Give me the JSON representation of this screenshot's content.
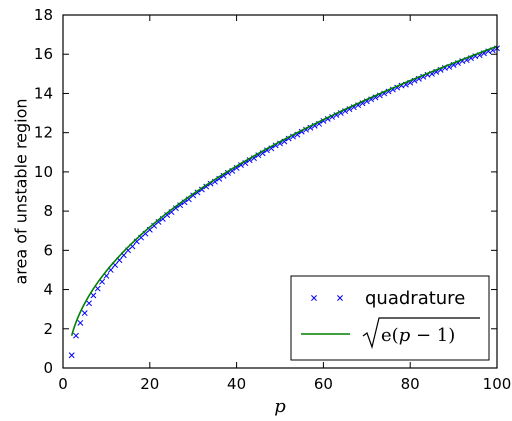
{
  "chart_data": {
    "type": "line",
    "title": "",
    "xlabel": "p",
    "ylabel": "area of unstable region",
    "xlim": [
      0,
      100
    ],
    "ylim": [
      0,
      18
    ],
    "xticks": [
      0,
      20,
      40,
      60,
      80,
      100
    ],
    "yticks": [
      0,
      2,
      4,
      6,
      8,
      10,
      12,
      14,
      16,
      18
    ],
    "grid": false,
    "legend_position": "lower-right",
    "series": [
      {
        "name": "quadrature",
        "kind": "markers",
        "marker": "x",
        "color": "#0000ff",
        "x": [
          2,
          3,
          4,
          5,
          6,
          7,
          8,
          9,
          10,
          11,
          12,
          13,
          14,
          15,
          16,
          17,
          18,
          19,
          20,
          21,
          22,
          23,
          24,
          25,
          26,
          27,
          28,
          29,
          30,
          31,
          32,
          33,
          34,
          35,
          36,
          37,
          38,
          39,
          40,
          41,
          42,
          43,
          44,
          45,
          46,
          47,
          48,
          49,
          50,
          51,
          52,
          53,
          54,
          55,
          56,
          57,
          58,
          59,
          60,
          61,
          62,
          63,
          64,
          65,
          66,
          67,
          68,
          69,
          70,
          71,
          72,
          73,
          74,
          75,
          76,
          77,
          78,
          79,
          80,
          81,
          82,
          83,
          84,
          85,
          86,
          87,
          88,
          89,
          90,
          91,
          92,
          93,
          94,
          95,
          96,
          97,
          98,
          99,
          100
        ],
        "y": [
          0.65,
          1.65,
          2.3,
          2.8,
          3.3,
          3.7,
          4.05,
          4.4,
          4.7,
          5.0,
          5.25,
          5.5,
          5.75,
          6.0,
          6.2,
          6.45,
          6.65,
          6.85,
          7.05,
          7.25,
          7.45,
          7.6,
          7.8,
          7.95,
          8.15,
          8.3,
          8.45,
          8.6,
          8.8,
          8.95,
          9.1,
          9.25,
          9.4,
          9.5,
          9.65,
          9.8,
          9.95,
          10.05,
          10.2,
          10.35,
          10.45,
          10.6,
          10.7,
          10.85,
          10.95,
          11.1,
          11.2,
          11.35,
          11.45,
          11.55,
          11.7,
          11.8,
          11.9,
          12.05,
          12.15,
          12.25,
          12.35,
          12.45,
          12.6,
          12.7,
          12.8,
          12.9,
          13.0,
          13.1,
          13.2,
          13.3,
          13.4,
          13.5,
          13.6,
          13.7,
          13.8,
          13.9,
          14.0,
          14.1,
          14.2,
          14.3,
          14.4,
          14.45,
          14.55,
          14.65,
          14.75,
          14.85,
          14.95,
          15.0,
          15.1,
          15.2,
          15.3,
          15.35,
          15.45,
          15.55,
          15.65,
          15.7,
          15.8,
          15.9,
          15.95,
          16.05,
          16.15,
          16.2,
          16.3
        ]
      },
      {
        "name": "√e(p − 1)",
        "kind": "line",
        "color": "#008000",
        "formula": "sqrt(e*(p-1))",
        "x_range": [
          2,
          100
        ]
      }
    ],
    "legend": {
      "entries": [
        {
          "label": "quadrature",
          "marker": "x",
          "color": "#0000ff"
        },
        {
          "label_prefix": "e(",
          "label_var": "p",
          "label_suffix": " − 1)",
          "marker": "line",
          "color": "#008000"
        }
      ]
    }
  }
}
